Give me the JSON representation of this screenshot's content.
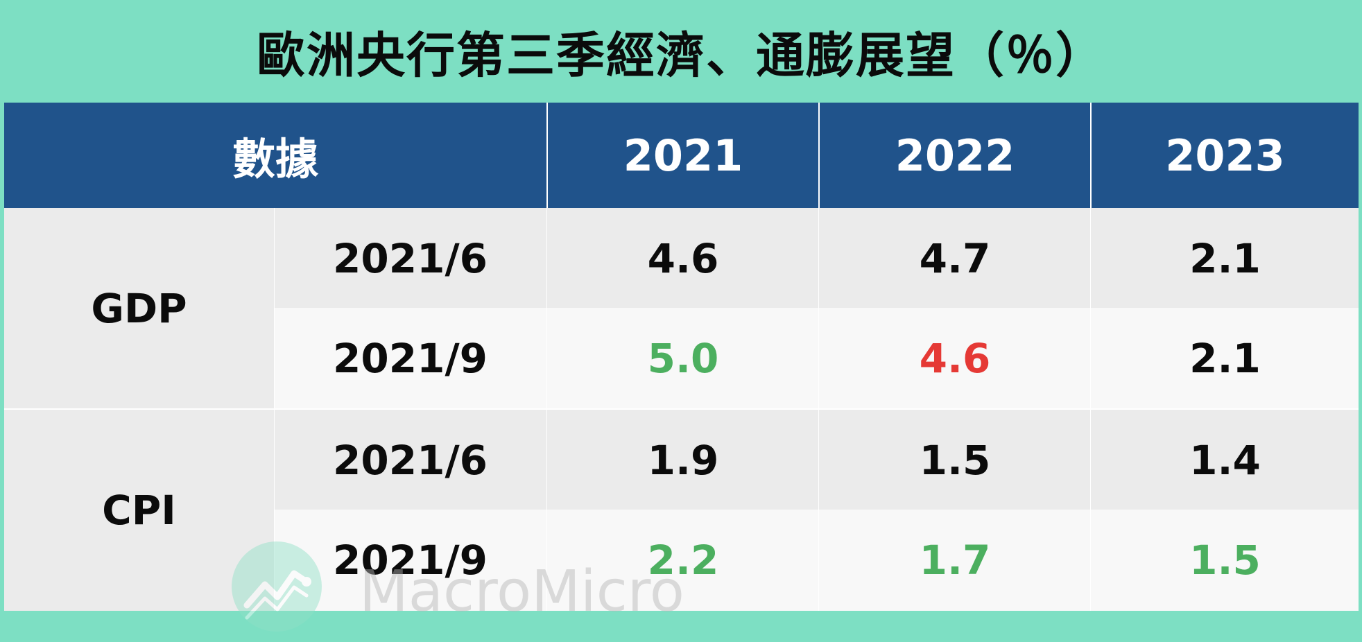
{
  "title": "歐洲央行第三季經濟、通膨展望（％）",
  "colors": {
    "background": "#7ddfc3",
    "header": "#20538b",
    "up": "#4caf5f",
    "down": "#e53935",
    "neutral": "#0b0b0b"
  },
  "watermark": "MacroMicro",
  "chart_data": {
    "type": "table",
    "columns": [
      "數據",
      "2021",
      "2022",
      "2023"
    ],
    "groups": [
      {
        "name": "GDP",
        "rows": [
          {
            "label": "2021/6",
            "values": [
              "4.6",
              "4.7",
              "2.1"
            ],
            "colors": [
              "neutral",
              "neutral",
              "neutral"
            ]
          },
          {
            "label": "2021/9",
            "values": [
              "5.0",
              "4.6",
              "2.1"
            ],
            "colors": [
              "up",
              "down",
              "neutral"
            ]
          }
        ]
      },
      {
        "name": "CPI",
        "rows": [
          {
            "label": "2021/6",
            "values": [
              "1.9",
              "1.5",
              "1.4"
            ],
            "colors": [
              "neutral",
              "neutral",
              "neutral"
            ]
          },
          {
            "label": "2021/9",
            "values": [
              "2.2",
              "1.7",
              "1.5"
            ],
            "colors": [
              "up",
              "up",
              "up"
            ]
          }
        ]
      }
    ]
  }
}
